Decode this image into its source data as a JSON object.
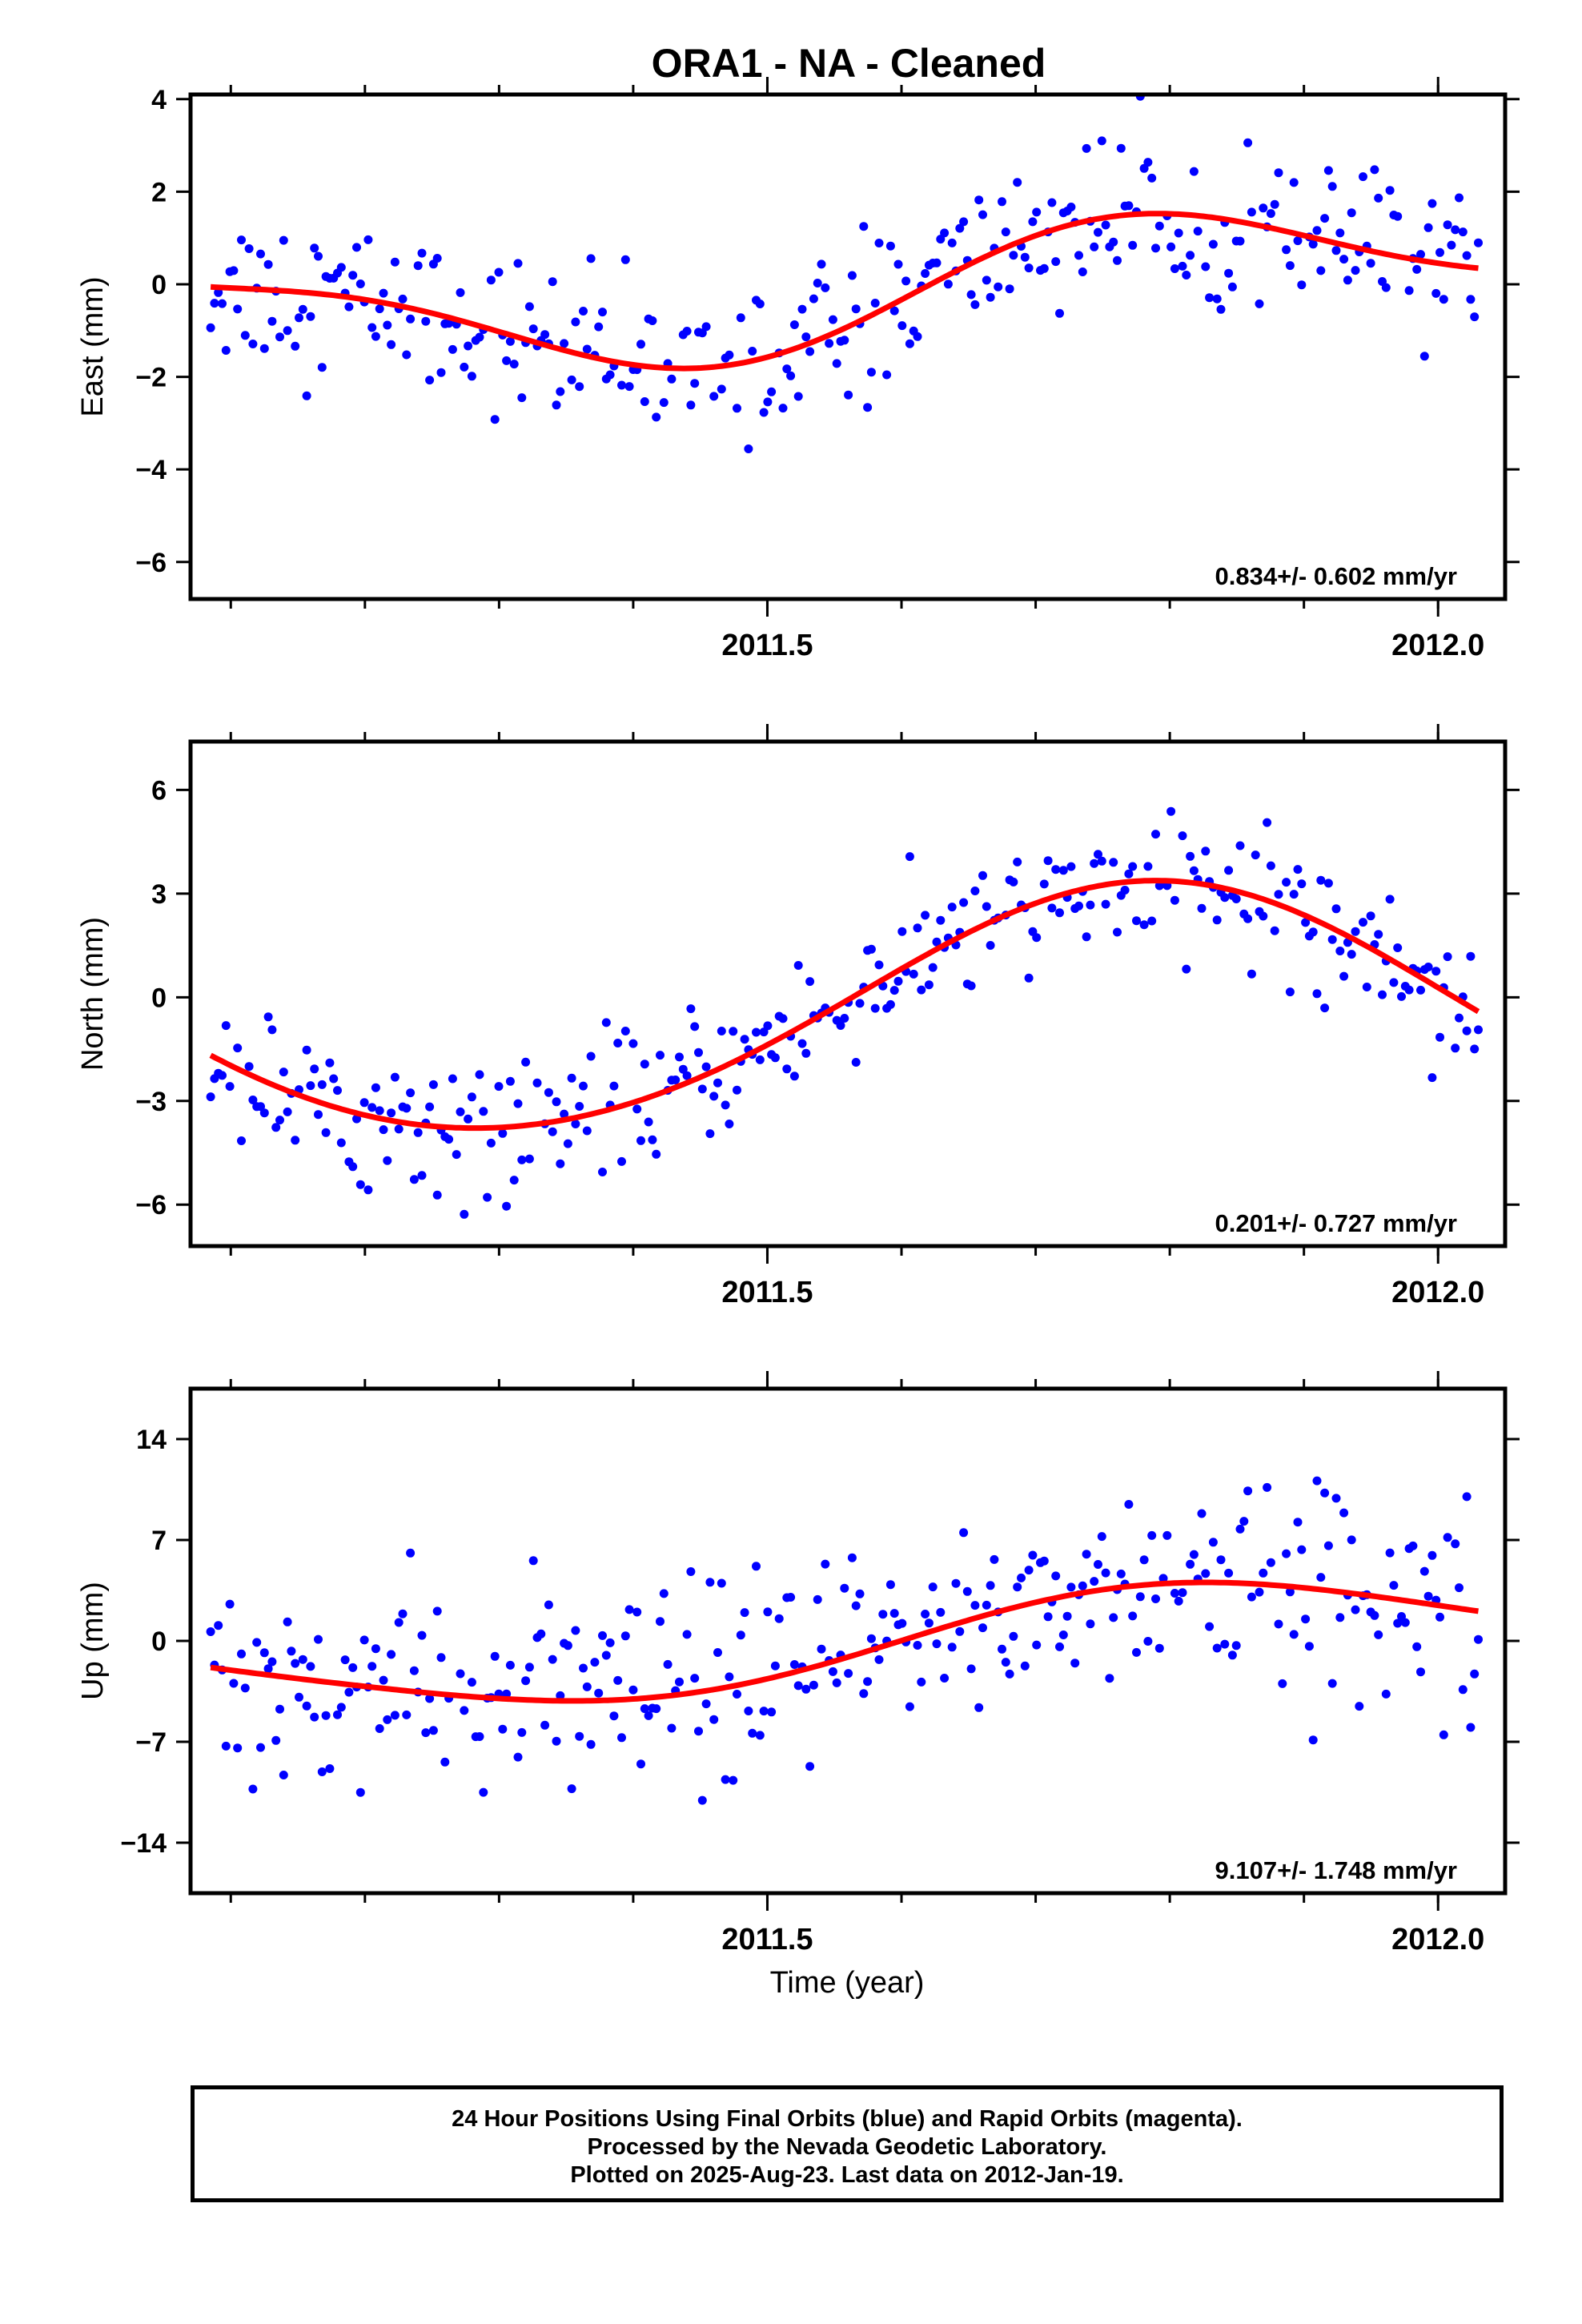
{
  "title": "ORA1  - NA - Cleaned",
  "xlabel": "Time (year)",
  "footer": {
    "line1": "24 Hour Positions Using Final Orbits (blue) and Rapid Orbits (magenta).",
    "line2": "Processed by the Nevada Geodetic Laboratory.",
    "line3": "Plotted on 2025-Aug-23. Last data on 2012-Jan-19."
  },
  "colors": {
    "final_orbits": "#0000ff",
    "fit": "#ff0000",
    "axes": "#000000"
  },
  "chart_data": [
    {
      "type": "scatter",
      "ylabel": "East (mm)",
      "xlim": [
        2011.07,
        2012.05
      ],
      "ylim": [
        -6.8,
        4.1
      ],
      "yticks": [
        -6,
        -4,
        -2,
        0,
        2,
        4
      ],
      "xticks_labeled": [
        2011.5,
        2012.0
      ],
      "xtick_labels": [
        "2011.5",
        "2012.0"
      ],
      "annotation": "0.834+/- 0.602 mm/yr",
      "fit": {
        "mean": -0.1,
        "slope": 0.834,
        "epoch": 2011.55,
        "sin_amp": 1.2,
        "cos_amp": -0.6,
        "sin2_amp": 0.4,
        "cos2_amp": -0.35
      },
      "scatter_sd": 0.85,
      "series": [
        {
          "name": "Final Orbits",
          "color": "#0000ff"
        },
        {
          "name": "Fit",
          "color": "#ff0000"
        }
      ]
    },
    {
      "type": "scatter",
      "ylabel": "North (mm)",
      "xlim": [
        2011.07,
        2012.05
      ],
      "ylim": [
        -7.2,
        7.4
      ],
      "yticks": [
        -6,
        -3,
        0,
        3,
        6
      ],
      "xticks_labeled": [
        2011.5,
        2012.0
      ],
      "xtick_labels": [
        "2011.5",
        "2012.0"
      ],
      "annotation": "0.201+/- 0.727 mm/yr",
      "fit": {
        "mean": -0.4,
        "slope": 0.201,
        "epoch": 2011.55,
        "sin_amp": 3.55,
        "cos_amp": 0.3,
        "sin2_amp": 0.0,
        "cos2_amp": -0.2
      },
      "scatter_sd": 0.95,
      "series": [
        {
          "name": "Final Orbits",
          "color": "#0000ff"
        },
        {
          "name": "Fit",
          "color": "#ff0000"
        }
      ]
    },
    {
      "type": "scatter",
      "ylabel": "Up (mm)",
      "xlim": [
        2011.07,
        2012.05
      ],
      "ylim": [
        -17.5,
        17.5
      ],
      "yticks": [
        -14,
        -7,
        0,
        7,
        14
      ],
      "xticks_labeled": [
        2011.5,
        2012.0
      ],
      "xtick_labels": [
        "2011.5",
        "2012.0"
      ],
      "annotation": "9.107+/- 1.748 mm/yr",
      "fit": {
        "mean": -0.3,
        "slope": 9.107,
        "epoch": 2011.55,
        "sin_amp": 3.2,
        "cos_amp": -0.8,
        "sin2_amp": 0.3,
        "cos2_amp": -0.3
      },
      "scatter_sd": 3.6,
      "series": [
        {
          "name": "Final Orbits",
          "color": "#0000ff"
        },
        {
          "name": "Fit",
          "color": "#ff0000"
        }
      ]
    }
  ]
}
